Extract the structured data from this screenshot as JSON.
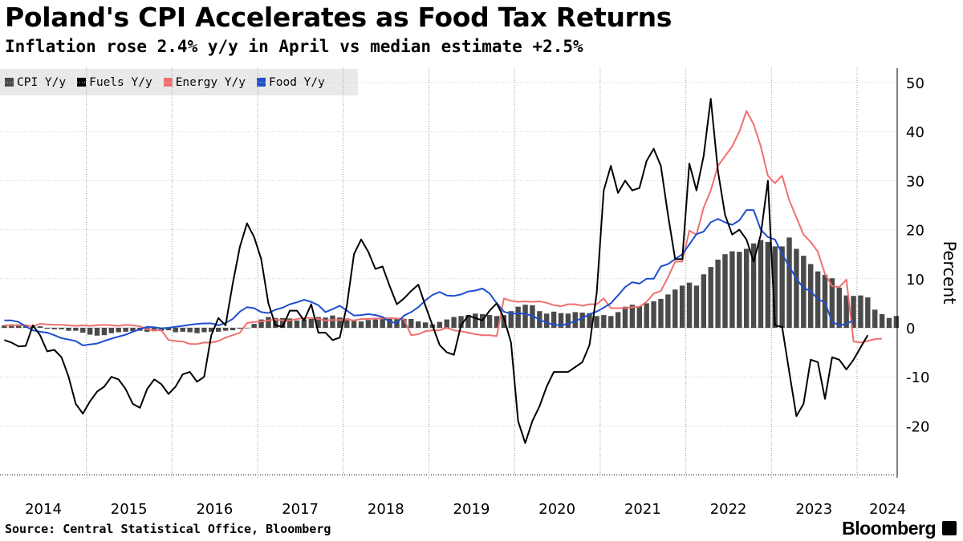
{
  "title": "Poland's CPI Accelerates as Food Tax Returns",
  "subtitle": "Inflation rose 2.4% y/y in April vs median estimate +2.5%",
  "source": "Source: Central Statistical Office, Bloomberg",
  "brand": "Bloomberg",
  "colors": {
    "cpi": "#4a4a4a",
    "fuels": "#000000",
    "energy": "#f07070",
    "food": "#1f4fd0",
    "grid": "#d0d0d0"
  },
  "chart_data": {
    "type": "line+bar",
    "ylabel": "Percent",
    "ylim": [
      -30,
      55
    ],
    "yticks": [
      50,
      40,
      30,
      20,
      10,
      0,
      -10,
      -20
    ],
    "ytick_labels": [
      "50",
      "40",
      "30",
      "20",
      "10",
      "0",
      "-10",
      "-20"
    ],
    "xlim": [
      2014.0,
      2024.45
    ],
    "xticks": [
      2014,
      2015,
      2016,
      2017,
      2018,
      2019,
      2020,
      2021,
      2022,
      2023,
      2024
    ],
    "xtick_labels": [
      "2014",
      "2015",
      "2016",
      "2017",
      "2018",
      "2019",
      "2020",
      "2021",
      "2022",
      "2023",
      "2024"
    ],
    "legend": [
      "CPI Y/y",
      "Fuels Y/y",
      "Energy Y/y",
      "Food Y/y"
    ],
    "series": [
      {
        "name": "CPI Y/y",
        "kind": "bar",
        "start": 2014.0,
        "values": [
          0.5,
          0.7,
          0.7,
          0.3,
          0.2,
          0.3,
          -0.2,
          -0.3,
          -0.3,
          -0.6,
          -0.6,
          -1.0,
          -1.4,
          -1.6,
          -1.5,
          -1.1,
          -0.9,
          -0.8,
          -0.7,
          -0.6,
          -0.8,
          -0.7,
          -0.6,
          -0.5,
          -0.9,
          -0.8,
          -0.9,
          -1.1,
          -0.9,
          -0.8,
          -0.8,
          -0.6,
          -0.5,
          -0.2,
          0.0,
          0.8,
          1.7,
          2.2,
          2.0,
          2.0,
          1.9,
          1.5,
          1.7,
          1.8,
          2.2,
          2.1,
          2.5,
          2.1,
          1.9,
          1.4,
          1.3,
          1.6,
          1.7,
          2.0,
          2.0,
          2.0,
          1.8,
          1.8,
          1.3,
          1.1,
          0.7,
          1.2,
          1.7,
          2.2,
          2.4,
          2.6,
          2.9,
          2.8,
          2.6,
          2.4,
          2.6,
          3.4,
          4.3,
          4.7,
          4.6,
          3.4,
          2.9,
          3.3,
          3.0,
          2.9,
          3.2,
          3.1,
          3.0,
          2.4,
          2.6,
          2.4,
          3.2,
          4.3,
          4.7,
          4.4,
          5.0,
          5.4,
          5.9,
          6.8,
          7.8,
          8.6,
          9.2,
          8.6,
          10.9,
          12.4,
          13.9,
          15.0,
          15.6,
          15.5,
          16.1,
          17.2,
          17.9,
          17.5,
          16.6,
          16.6,
          18.4,
          16.1,
          14.7,
          13.0,
          11.5,
          10.8,
          10.1,
          8.2,
          6.6,
          6.5,
          6.6,
          6.2,
          3.7,
          2.8,
          2.0,
          2.4
        ]
      },
      {
        "name": "Fuels Y/y",
        "kind": "line",
        "start": 2014.0,
        "values": [
          -2.5,
          -3.0,
          -3.8,
          -3.7,
          0.5,
          -1.5,
          -4.8,
          -4.5,
          -6.0,
          -10.0,
          -15.5,
          -17.5,
          -15.0,
          -13.0,
          -12.0,
          -10.0,
          -10.5,
          -12.5,
          -15.5,
          -16.3,
          -12.5,
          -10.5,
          -11.5,
          -13.5,
          -12.0,
          -9.5,
          -9.0,
          -11.0,
          -10.0,
          -1.5,
          2.0,
          0.5,
          9.0,
          16.5,
          21.3,
          18.5,
          14.0,
          5.0,
          0.5,
          0.2,
          3.5,
          3.5,
          1.5,
          4.8,
          -1.0,
          -1.0,
          -2.5,
          -2.0,
          4.5,
          15.0,
          18.0,
          15.5,
          12.0,
          12.5,
          8.5,
          4.8,
          6.0,
          7.5,
          8.8,
          4.5,
          0.5,
          -3.5,
          -5.0,
          -5.5,
          0.5,
          2.5,
          2.0,
          1.5,
          3.5,
          5.0,
          2.0,
          -3.0,
          -19.0,
          -23.5,
          -19.0,
          -16.0,
          -12.0,
          -9.0,
          -9.0,
          -9.0,
          -8.0,
          -7.0,
          -3.5,
          7.0,
          28.0,
          33.0,
          27.5,
          30.0,
          28.0,
          28.5,
          34.0,
          36.5,
          33.0,
          23.0,
          14.0,
          14.0,
          33.5,
          28.0,
          35.0,
          46.7,
          32.0,
          23.0,
          19.0,
          20.0,
          18.0,
          13.5,
          19.0,
          30.0,
          0.5,
          0.2,
          -9.0,
          -18.0,
          -15.5,
          -6.5,
          -7.0,
          -14.5,
          -6.0,
          -6.5,
          -8.5,
          -6.5,
          -4.0,
          -1.5
        ]
      },
      {
        "name": "Energy Y/y",
        "kind": "line",
        "start": 2014.0,
        "values": [
          0.5,
          0.5,
          0.5,
          0.5,
          0.3,
          0.8,
          0.7,
          0.6,
          0.6,
          0.5,
          0.4,
          0.5,
          0.4,
          0.5,
          0.6,
          0.5,
          0.4,
          0.6,
          0.5,
          0.3,
          -0.3,
          -0.5,
          -0.5,
          -2.5,
          -2.7,
          -2.8,
          -3.3,
          -3.3,
          -3.0,
          -3.0,
          -2.7,
          -2.0,
          -1.5,
          -1.0,
          1.0,
          1.2,
          1.3,
          1.5,
          1.7,
          1.5,
          1.5,
          1.8,
          2.0,
          2.0,
          1.8,
          1.5,
          1.6,
          1.6,
          1.7,
          1.5,
          1.8,
          1.8,
          1.9,
          1.9,
          2.0,
          1.9,
          1.8,
          -1.5,
          -1.3,
          -0.7,
          -0.5,
          -0.5,
          0.0,
          -0.5,
          -0.7,
          -1.0,
          -1.3,
          -1.5,
          -1.5,
          -1.7,
          6.0,
          5.5,
          5.3,
          5.4,
          5.3,
          5.4,
          5.1,
          4.6,
          4.4,
          4.8,
          4.8,
          4.5,
          4.8,
          4.8,
          6.0,
          4.0,
          4.0,
          4.0,
          4.2,
          4.3,
          5.3,
          7.0,
          7.5,
          10.3,
          13.5,
          13.5,
          19.8,
          19.0,
          24.5,
          28.0,
          33.0,
          35.0,
          37.0,
          40.0,
          44.2,
          41.5,
          37.0,
          31.0,
          29.5,
          31.0,
          26.0,
          22.5,
          19.0,
          17.5,
          15.5,
          11.0,
          8.5,
          8.3,
          9.8,
          -2.8,
          -3.0,
          -2.7,
          -2.3,
          -2.2
        ]
      },
      {
        "name": "Food Y/y",
        "kind": "line",
        "start": 2014.0,
        "values": [
          1.5,
          1.5,
          1.2,
          0.3,
          -0.5,
          -0.8,
          -1.0,
          -1.5,
          -2.1,
          -2.4,
          -2.7,
          -3.6,
          -3.4,
          -3.2,
          -2.7,
          -2.2,
          -1.8,
          -1.4,
          -0.8,
          -0.3,
          0.2,
          0.1,
          -0.1,
          0.0,
          0.2,
          0.4,
          0.6,
          0.8,
          0.9,
          0.9,
          0.5,
          1.0,
          1.8,
          3.3,
          4.2,
          4.0,
          3.2,
          3.0,
          3.7,
          4.1,
          4.8,
          5.2,
          5.7,
          5.3,
          4.6,
          3.2,
          3.8,
          4.5,
          3.5,
          2.5,
          2.6,
          2.8,
          2.6,
          2.2,
          1.2,
          1.0,
          2.5,
          3.2,
          4.2,
          5.6,
          6.7,
          7.3,
          6.6,
          6.5,
          6.8,
          7.4,
          7.6,
          8.0,
          7.0,
          5.0,
          3.3,
          2.8,
          3.0,
          2.8,
          2.5,
          1.6,
          1.1,
          0.6,
          0.5,
          0.8,
          1.4,
          2.0,
          2.8,
          3.3,
          4.1,
          5.0,
          6.6,
          8.3,
          9.3,
          9.0,
          10.0,
          10.0,
          12.5,
          13.0,
          14.0,
          15.0,
          17.0,
          19.1,
          19.6,
          21.5,
          22.2,
          21.5,
          21.0,
          21.9,
          24.0,
          24.0,
          20.0,
          18.5,
          18.0,
          15.0,
          12.5,
          10.0,
          8.1,
          7.5,
          5.8,
          5.2,
          1.2,
          0.5,
          0.8,
          1.5
        ]
      }
    ]
  }
}
